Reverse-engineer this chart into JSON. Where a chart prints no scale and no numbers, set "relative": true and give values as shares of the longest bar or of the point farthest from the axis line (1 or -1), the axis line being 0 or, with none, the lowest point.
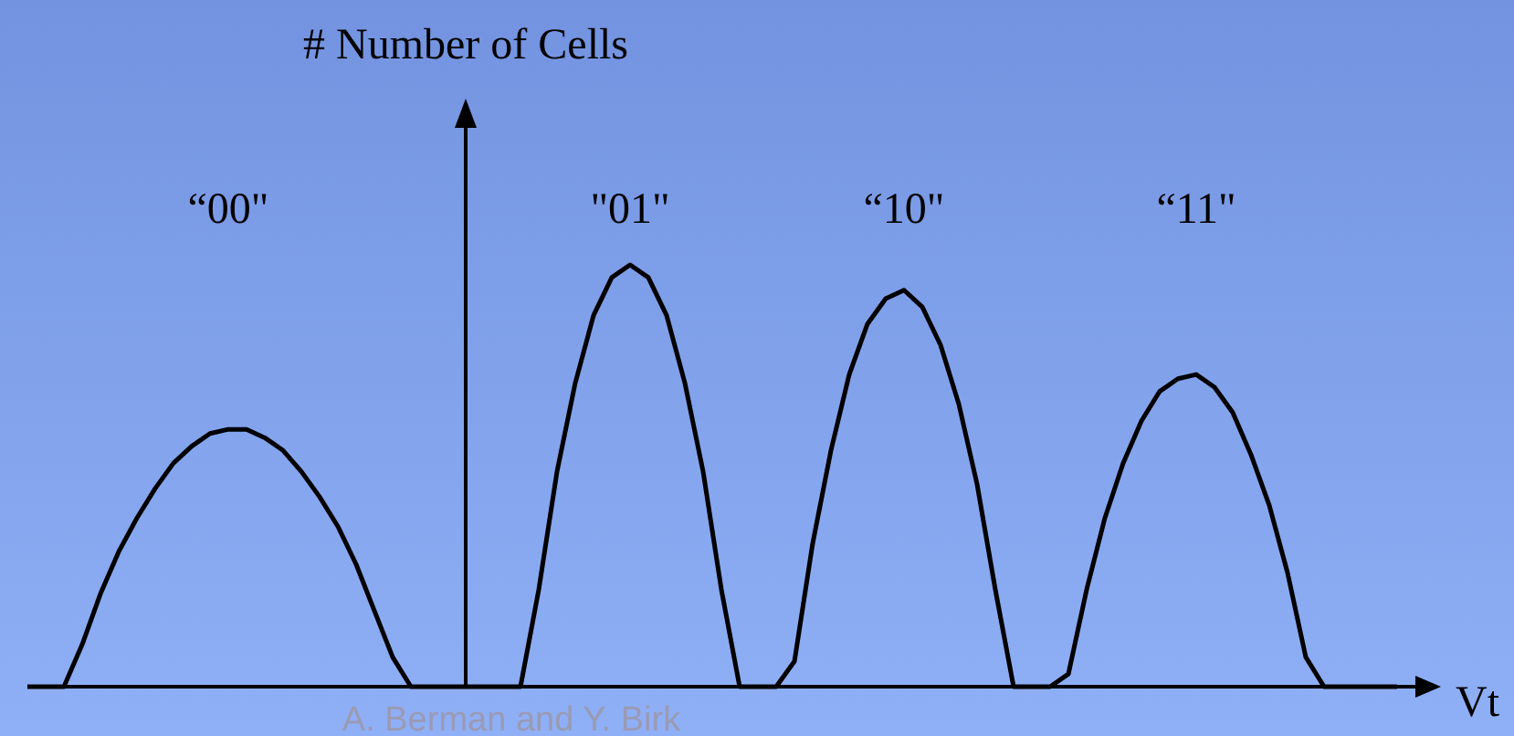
{
  "chart_data": {
    "type": "line",
    "relative": true,
    "ylabel": "# Number of Cells",
    "xlabel": "Vt",
    "color": "#000000",
    "marker": "none",
    "legend": false,
    "annotations": [
      "“00\"",
      "\"01\"",
      "“10\"",
      "“11\"",
      "A. Berman and Y. Birk"
    ],
    "categories": [
      null,
      null,
      null,
      null,
      null,
      null,
      null,
      null,
      null,
      null,
      null,
      null,
      null,
      null,
      null,
      null,
      null,
      null,
      null,
      null,
      null,
      null,
      null,
      null,
      null,
      null,
      null,
      null,
      null,
      null,
      null,
      null,
      null,
      null,
      null,
      null,
      null,
      null,
      null,
      null,
      null,
      null,
      null,
      null,
      null,
      null,
      null,
      null,
      null,
      null,
      null,
      null,
      null,
      null,
      null,
      null,
      null,
      null,
      null,
      null,
      null,
      null,
      null,
      null,
      null,
      null,
      null,
      null,
      null,
      null,
      null,
      null,
      null,
      null,
      null,
      null
    ],
    "values": [
      0,
      0,
      0,
      0.1,
      0.22,
      0.32,
      0.4,
      0.47,
      0.53,
      0.57,
      0.6,
      0.61,
      0.61,
      0.59,
      0.56,
      0.51,
      0.45,
      0.38,
      0.29,
      0.18,
      0.07,
      0,
      0,
      0,
      0,
      0,
      0,
      0,
      0.23,
      0.51,
      0.72,
      0.88,
      0.97,
      1,
      0.97,
      0.88,
      0.72,
      0.51,
      0.23,
      0,
      0,
      0,
      0.06,
      0.34,
      0.56,
      0.74,
      0.86,
      0.92,
      0.94,
      0.9,
      0.81,
      0.67,
      0.48,
      0.23,
      0,
      0,
      0,
      0.03,
      0.23,
      0.4,
      0.53,
      0.63,
      0.7,
      0.73,
      0.74,
      0.71,
      0.65,
      0.55,
      0.43,
      0.27,
      0.07,
      0,
      0,
      0,
      0,
      0
    ]
  }
}
